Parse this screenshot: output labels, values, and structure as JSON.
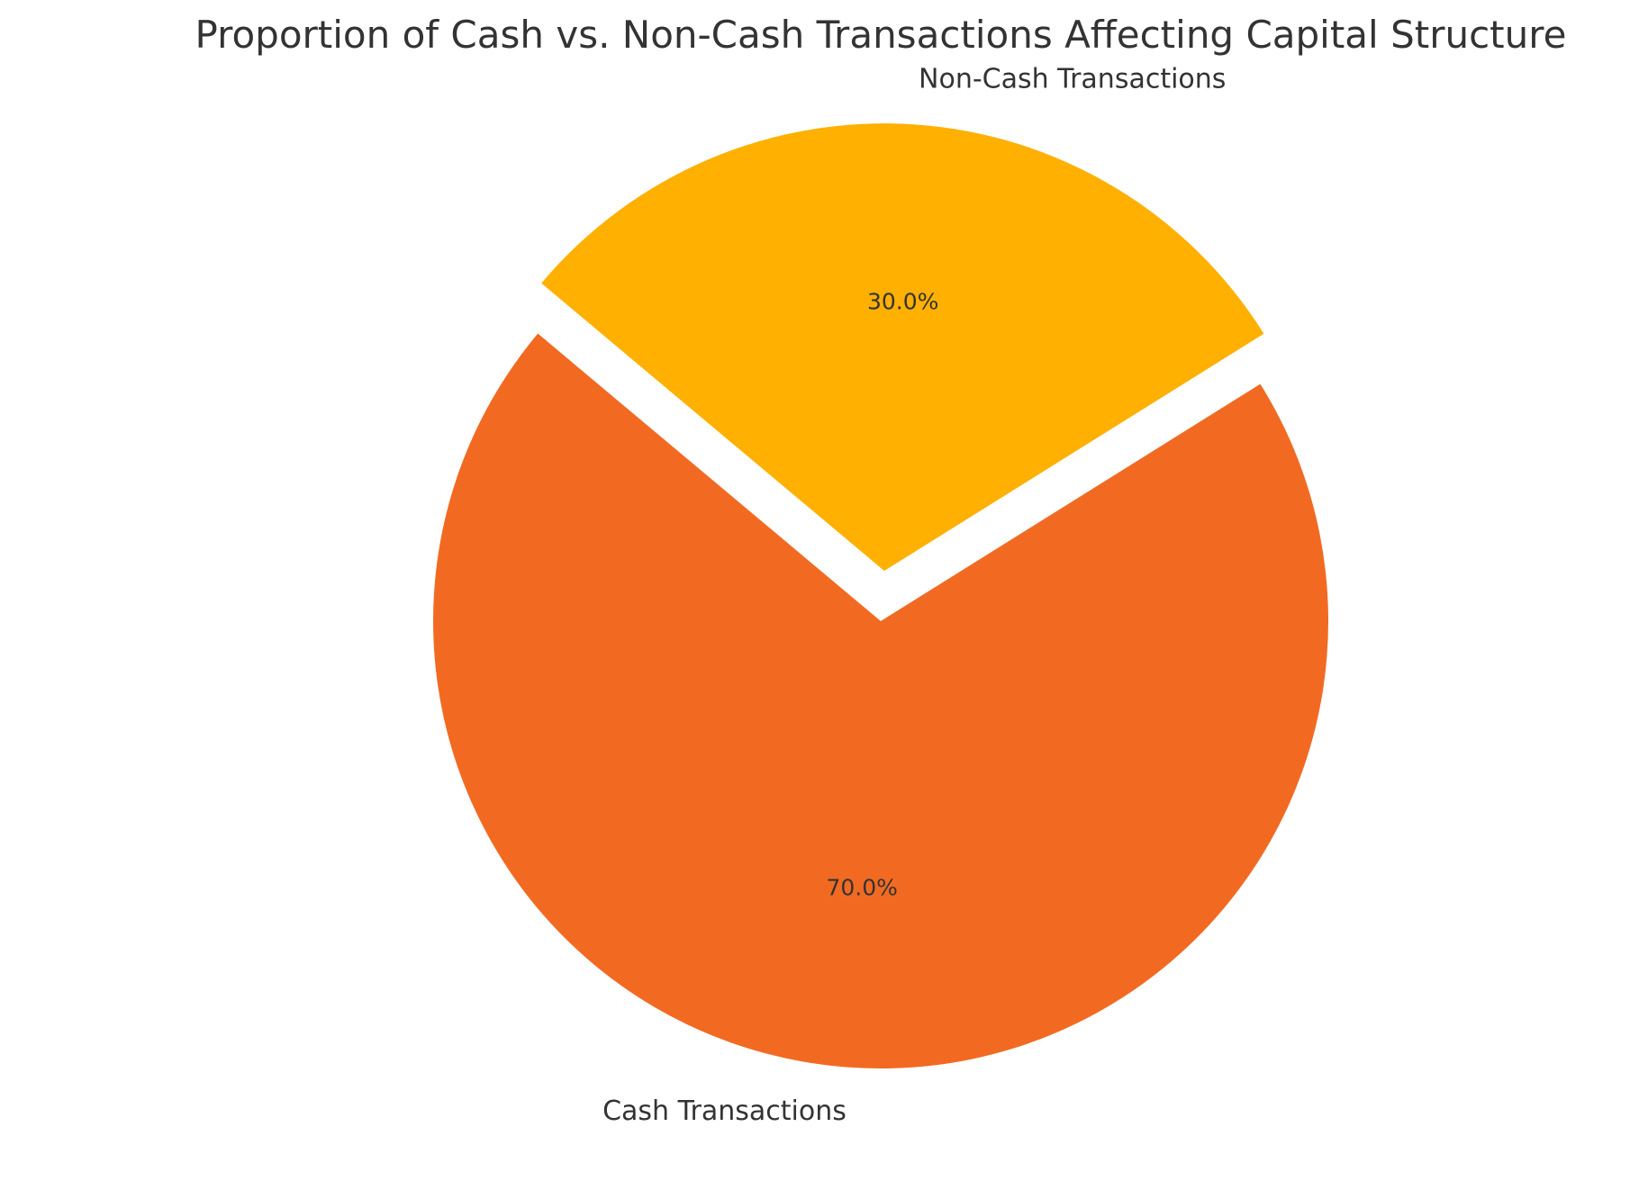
{
  "chart_data": {
    "type": "pie",
    "title": "Proportion of Cash vs. Non-Cash Transactions Affecting Capital Structure",
    "slices": [
      {
        "label": "Cash Transactions",
        "value": 70,
        "pct_label": "70.0%",
        "color": "#f26a22",
        "exploded": false
      },
      {
        "label": "Non-Cash Transactions",
        "value": 30,
        "pct_label": "30.0%",
        "color": "#ffb000",
        "exploded": true
      }
    ],
    "start_angle_deg": 140,
    "direction": "counterclockwise",
    "legend": "none"
  }
}
